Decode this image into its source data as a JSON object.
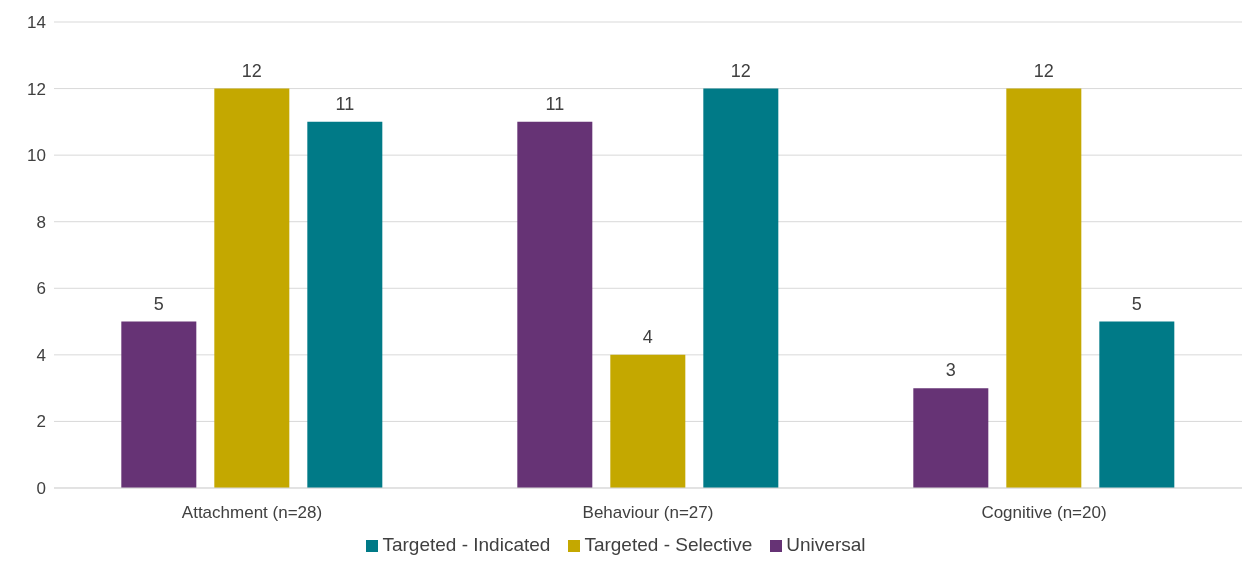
{
  "chart_data": {
    "type": "bar",
    "categories": [
      "Attachment (n=28)",
      "Behaviour (n=27)",
      "Cognitive (n=20)"
    ],
    "series": [
      {
        "name": "Universal",
        "color": "#663375",
        "values": [
          5,
          11,
          3
        ]
      },
      {
        "name": "Targeted - Selective",
        "color": "#c4a800",
        "values": [
          12,
          4,
          12
        ]
      },
      {
        "name": "Targeted - Indicated",
        "color": "#007a87",
        "values": [
          11,
          12,
          5
        ]
      }
    ],
    "ylim": [
      0,
      14
    ],
    "yticks": [
      0,
      2,
      4,
      6,
      8,
      10,
      12,
      14
    ],
    "grid": "y",
    "legend": "bottom",
    "data_labels": true
  }
}
